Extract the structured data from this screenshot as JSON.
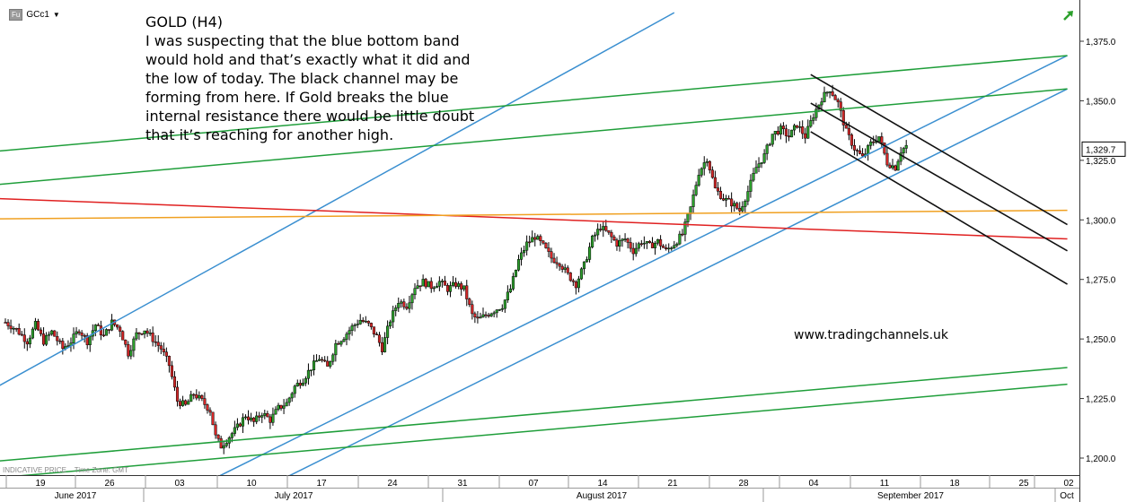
{
  "header": {
    "symbol_badge": "Fu",
    "symbol": "GCc1",
    "dropdown_icon": "caret-down-icon",
    "trend_icon": "green-up-arrow-icon"
  },
  "annotation": {
    "title": "GOLD (H4)",
    "body": "I was suspecting that the blue bottom band would hold and that’s exactly what it did and the low of today. The black channel may be forming from here. If Gold breaks the blue internal resistance there would be little doubt that it’s reaching for another high."
  },
  "watermark": "www.tradingchannels.uk",
  "footer": {
    "indicative": "INDICATIVE PRICE",
    "timezone": "Time Zone: GMT"
  },
  "colors": {
    "up_candle": "#2ca02c",
    "down_candle": "#d62728",
    "blue_channel": "#3a8fd0",
    "green_lines": "#1f9e3a",
    "red_line": "#e02020",
    "orange_line": "#f0a020",
    "black_channel": "#111111",
    "last_price_box": "#ffffff"
  },
  "chart_data": {
    "type": "candlestick",
    "ylim": [
      1190,
      1385
    ],
    "y_ticks": [
      "1,375.0",
      "1,350.0",
      "1,325.0",
      "1,300.0",
      "1,275.0",
      "1,250.0",
      "1,225.0",
      "1,200.0"
    ],
    "last_price_label": "1,329.7",
    "last_price": 1329.7,
    "x_day_labels": [
      "19",
      "26",
      "03",
      "10",
      "17",
      "24",
      "31",
      "07",
      "14",
      "21",
      "28",
      "04",
      "11",
      "18",
      "25",
      "02"
    ],
    "x_month_labels": [
      "June 2017",
      "July 2017",
      "August 2017",
      "September 2017",
      "Oct"
    ],
    "price_path": [
      [
        0,
        1257
      ],
      [
        4,
        1254
      ],
      [
        8,
        1249
      ],
      [
        11,
        1256
      ],
      [
        14,
        1249
      ],
      [
        17,
        1253
      ],
      [
        21,
        1246
      ],
      [
        24,
        1249
      ],
      [
        27,
        1254
      ],
      [
        30,
        1249
      ],
      [
        33,
        1256
      ],
      [
        36,
        1251
      ],
      [
        39,
        1257
      ],
      [
        42,
        1254
      ],
      [
        45,
        1244
      ],
      [
        48,
        1252
      ],
      [
        51,
        1254
      ],
      [
        54,
        1250
      ],
      [
        57,
        1246
      ],
      [
        60,
        1239
      ],
      [
        62,
        1229
      ],
      [
        63,
        1224
      ],
      [
        66,
        1222
      ],
      [
        69,
        1227
      ],
      [
        72,
        1224
      ],
      [
        75,
        1220
      ],
      [
        77,
        1209
      ],
      [
        79,
        1205
      ],
      [
        82,
        1209
      ],
      [
        85,
        1213
      ],
      [
        88,
        1218
      ],
      [
        91,
        1215
      ],
      [
        94,
        1219
      ],
      [
        97,
        1216
      ],
      [
        100,
        1221
      ],
      [
        103,
        1223
      ],
      [
        106,
        1230
      ],
      [
        109,
        1233
      ],
      [
        112,
        1238
      ],
      [
        115,
        1242
      ],
      [
        118,
        1238
      ],
      [
        121,
        1248
      ],
      [
        124,
        1251
      ],
      [
        127,
        1255
      ],
      [
        130,
        1258
      ],
      [
        133,
        1256
      ],
      [
        136,
        1251
      ],
      [
        138,
        1246
      ],
      [
        141,
        1258
      ],
      [
        144,
        1266
      ],
      [
        147,
        1264
      ],
      [
        150,
        1272
      ],
      [
        153,
        1274
      ],
      [
        156,
        1272
      ],
      [
        159,
        1274
      ],
      [
        162,
        1271
      ],
      [
        165,
        1273
      ],
      [
        168,
        1271
      ],
      [
        171,
        1260
      ],
      [
        173,
        1258
      ],
      [
        176,
        1260
      ],
      [
        179,
        1262
      ],
      [
        182,
        1264
      ],
      [
        185,
        1271
      ],
      [
        188,
        1283
      ],
      [
        191,
        1290
      ],
      [
        194,
        1293
      ],
      [
        197,
        1289
      ],
      [
        200,
        1284
      ],
      [
        203,
        1282
      ],
      [
        206,
        1277
      ],
      [
        209,
        1273
      ],
      [
        212,
        1281
      ],
      [
        215,
        1292
      ],
      [
        218,
        1297
      ],
      [
        221,
        1294
      ],
      [
        224,
        1290
      ],
      [
        227,
        1292
      ],
      [
        230,
        1287
      ],
      [
        233,
        1291
      ],
      [
        236,
        1289
      ],
      [
        239,
        1291
      ],
      [
        242,
        1287
      ],
      [
        245,
        1290
      ],
      [
        248,
        1294
      ],
      [
        251,
        1305
      ],
      [
        254,
        1320
      ],
      [
        257,
        1326
      ],
      [
        260,
        1313
      ],
      [
        263,
        1309
      ],
      [
        266,
        1307
      ],
      [
        269,
        1304
      ],
      [
        272,
        1312
      ],
      [
        275,
        1322
      ],
      [
        278,
        1327
      ],
      [
        281,
        1336
      ],
      [
        284,
        1338
      ],
      [
        287,
        1335
      ],
      [
        290,
        1340
      ],
      [
        293,
        1335
      ],
      [
        296,
        1344
      ],
      [
        299,
        1351
      ],
      [
        302,
        1355
      ],
      [
        305,
        1349
      ],
      [
        308,
        1337
      ],
      [
        311,
        1330
      ],
      [
        314,
        1326
      ],
      [
        317,
        1332
      ],
      [
        320,
        1335
      ],
      [
        323,
        1324
      ],
      [
        326,
        1322
      ],
      [
        328,
        1329
      ],
      [
        330,
        1331
      ]
    ],
    "trendlines": [
      {
        "color_key": "blue_channel",
        "points": [
          [
            -25,
            1216
          ],
          [
            245,
            1387
          ]
        ]
      },
      {
        "color_key": "blue_channel",
        "points": [
          [
            74,
            1190
          ],
          [
            389,
            1369
          ]
        ]
      },
      {
        "color_key": "blue_channel",
        "points": [
          [
            103,
            1192
          ],
          [
            389,
            1355
          ]
        ]
      },
      {
        "color_key": "green_lines",
        "points": [
          [
            -50,
            1324
          ],
          [
            389,
            1369
          ]
        ]
      },
      {
        "color_key": "green_lines",
        "points": [
          [
            -50,
            1310
          ],
          [
            389,
            1355
          ]
        ]
      },
      {
        "color_key": "green_lines",
        "points": [
          [
            -50,
            1194
          ],
          [
            389,
            1238
          ]
        ]
      },
      {
        "color_key": "green_lines",
        "points": [
          [
            -50,
            1187
          ],
          [
            389,
            1231
          ]
        ]
      },
      {
        "color_key": "red_line",
        "points": [
          [
            -50,
            1311
          ],
          [
            389,
            1292
          ]
        ]
      },
      {
        "color_key": "orange_line",
        "points": [
          [
            -50,
            1300
          ],
          [
            389,
            1304
          ]
        ]
      },
      {
        "color_key": "black_channel",
        "points": [
          [
            295,
            1361
          ],
          [
            389,
            1298
          ]
        ]
      },
      {
        "color_key": "black_channel",
        "points": [
          [
            295,
            1349
          ],
          [
            389,
            1287
          ]
        ]
      },
      {
        "color_key": "black_channel",
        "points": [
          [
            295,
            1337
          ],
          [
            389,
            1273
          ]
        ]
      }
    ]
  }
}
